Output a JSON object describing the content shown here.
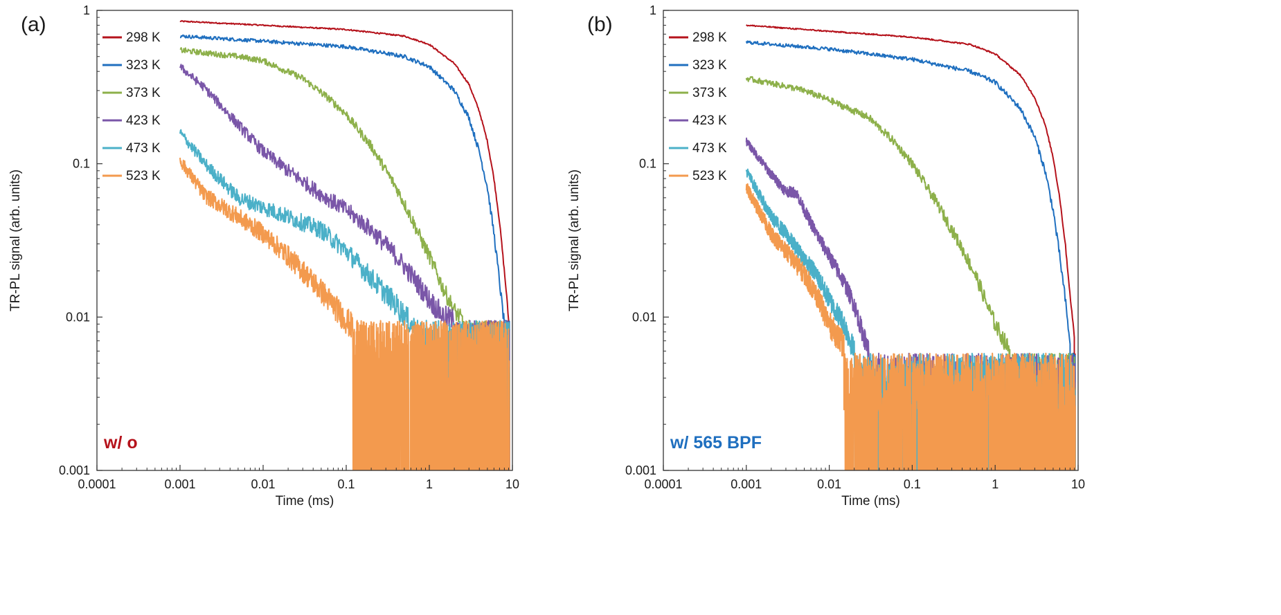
{
  "chart_data": [
    {
      "type": "line",
      "panel_label": "(a)",
      "condition_label": "w/ o",
      "condition_color": "#b5121b",
      "xlabel": "Time (ms)",
      "ylabel": "TR-PL signal (arb. units)",
      "xscale": "log",
      "yscale": "log",
      "xlim": [
        0.0001,
        10
      ],
      "ylim": [
        0.001,
        1
      ],
      "x_ticks": [
        "0.0001",
        "0.001",
        "0.01",
        "0.1",
        "1",
        "10"
      ],
      "y_ticks": [
        "0.001",
        "0.01",
        "0.1",
        "1"
      ],
      "legend_position": "top-left",
      "noise_floor": 0.0095,
      "series": [
        {
          "name": "298 K",
          "color": "#b5121b",
          "x": [
            0.001,
            0.01,
            0.1,
            0.5,
            1,
            2,
            3,
            4,
            5,
            6,
            7,
            8,
            8.5,
            9
          ],
          "y": [
            0.85,
            0.8,
            0.75,
            0.68,
            0.6,
            0.45,
            0.33,
            0.22,
            0.14,
            0.08,
            0.042,
            0.02,
            0.014,
            0.0095
          ]
        },
        {
          "name": "323 K",
          "color": "#1f6fbf",
          "x": [
            0.001,
            0.01,
            0.1,
            0.5,
            1,
            2,
            3,
            4,
            5,
            6,
            7,
            7.5,
            8
          ],
          "y": [
            0.68,
            0.63,
            0.58,
            0.5,
            0.43,
            0.3,
            0.2,
            0.12,
            0.07,
            0.035,
            0.017,
            0.012,
            0.009
          ]
        },
        {
          "name": "373 K",
          "color": "#8db04a",
          "x": [
            0.001,
            0.005,
            0.01,
            0.03,
            0.06,
            0.1,
            0.2,
            0.4,
            0.6,
            0.8,
            1,
            1.5,
            2,
            2.5
          ],
          "y": [
            0.55,
            0.5,
            0.47,
            0.36,
            0.27,
            0.21,
            0.13,
            0.07,
            0.045,
            0.032,
            0.025,
            0.015,
            0.011,
            0.0095
          ]
        },
        {
          "name": "423 K",
          "color": "#7a56a8",
          "x": [
            0.001,
            0.002,
            0.005,
            0.01,
            0.02,
            0.05,
            0.1,
            0.2,
            0.4,
            0.7,
            1,
            1.5,
            2
          ],
          "y": [
            0.43,
            0.31,
            0.18,
            0.12,
            0.09,
            0.063,
            0.05,
            0.037,
            0.025,
            0.017,
            0.013,
            0.01,
            0.0095
          ]
        },
        {
          "name": "473 K",
          "color": "#4bb0c8",
          "x": [
            0.001,
            0.002,
            0.005,
            0.01,
            0.02,
            0.05,
            0.1,
            0.2,
            0.4,
            0.6,
            0.8
          ],
          "y": [
            0.16,
            0.1,
            0.06,
            0.052,
            0.045,
            0.037,
            0.027,
            0.018,
            0.012,
            0.009,
            0.0075
          ]
        },
        {
          "name": "523 K",
          "color": "#f39a4e",
          "x": [
            0.001,
            0.002,
            0.005,
            0.01,
            0.02,
            0.04,
            0.07,
            0.1,
            0.12
          ],
          "y": [
            0.105,
            0.062,
            0.045,
            0.035,
            0.025,
            0.017,
            0.012,
            0.0095,
            0.0085
          ]
        }
      ]
    },
    {
      "type": "line",
      "panel_label": "(b)",
      "condition_label": "w/ 565 BPF",
      "condition_color": "#1f6fbf",
      "xlabel": "Time (ms)",
      "ylabel": "TR-PL signal (arb. units)",
      "xscale": "log",
      "yscale": "log",
      "xlim": [
        0.0001,
        10
      ],
      "ylim": [
        0.001,
        1
      ],
      "x_ticks": [
        "0.0001",
        "0.001",
        "0.01",
        "0.1",
        "1",
        "10"
      ],
      "y_ticks": [
        "0.001",
        "0.01",
        "0.1",
        "1"
      ],
      "legend_position": "top-left",
      "noise_floor": 0.0058,
      "series": [
        {
          "name": "298 K",
          "color": "#b5121b",
          "x": [
            0.001,
            0.01,
            0.1,
            0.5,
            1,
            2,
            3,
            4,
            5,
            6,
            7,
            8,
            8.5,
            9
          ],
          "y": [
            0.8,
            0.73,
            0.67,
            0.6,
            0.52,
            0.38,
            0.27,
            0.18,
            0.11,
            0.06,
            0.03,
            0.014,
            0.01,
            0.0075
          ]
        },
        {
          "name": "323 K",
          "color": "#1f6fbf",
          "x": [
            0.001,
            0.01,
            0.1,
            0.5,
            1,
            2,
            3,
            4,
            5,
            6,
            7,
            7.5,
            8
          ],
          "y": [
            0.62,
            0.56,
            0.48,
            0.4,
            0.34,
            0.23,
            0.15,
            0.09,
            0.05,
            0.025,
            0.013,
            0.009,
            0.007
          ]
        },
        {
          "name": "373 K",
          "color": "#8db04a",
          "x": [
            0.001,
            0.003,
            0.005,
            0.01,
            0.03,
            0.06,
            0.1,
            0.2,
            0.4,
            0.6,
            0.8,
            1,
            1.2,
            1.5
          ],
          "y": [
            0.36,
            0.32,
            0.3,
            0.26,
            0.2,
            0.14,
            0.1,
            0.055,
            0.028,
            0.018,
            0.012,
            0.009,
            0.0075,
            0.006
          ]
        },
        {
          "name": "423 K",
          "color": "#7a56a8",
          "x": [
            0.001,
            0.002,
            0.003,
            0.004,
            0.005,
            0.007,
            0.01,
            0.015,
            0.02,
            0.025,
            0.03
          ],
          "y": [
            0.14,
            0.085,
            0.066,
            0.065,
            0.05,
            0.035,
            0.025,
            0.017,
            0.012,
            0.008,
            0.006
          ]
        },
        {
          "name": "473 K",
          "color": "#4bb0c8",
          "x": [
            0.001,
            0.002,
            0.003,
            0.005,
            0.007,
            0.01,
            0.015,
            0.02
          ],
          "y": [
            0.09,
            0.045,
            0.035,
            0.024,
            0.019,
            0.013,
            0.009,
            0.006
          ]
        },
        {
          "name": "523 K",
          "color": "#f39a4e",
          "x": [
            0.001,
            0.002,
            0.003,
            0.005,
            0.007,
            0.01,
            0.015
          ],
          "y": [
            0.07,
            0.035,
            0.027,
            0.019,
            0.014,
            0.009,
            0.0065
          ]
        }
      ]
    }
  ]
}
